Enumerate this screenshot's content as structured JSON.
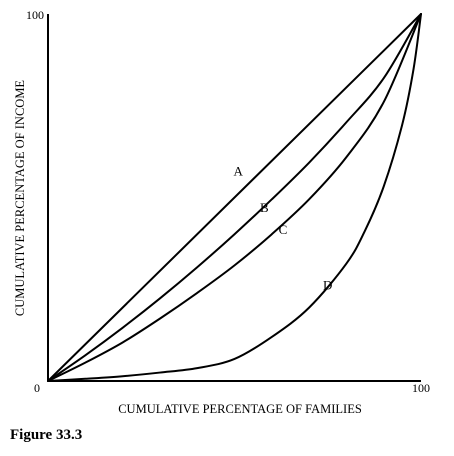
{
  "caption": "Figure 33.3",
  "chart_data": {
    "type": "line",
    "xlabel": "CUMULATIVE PERCENTAGE OF FAMILIES",
    "ylabel": "CUMULATIVE PERCENTAGE OF INCOME",
    "xlim": [
      0,
      100
    ],
    "ylim": [
      0,
      100
    ],
    "x_ticks": [
      "0",
      "100"
    ],
    "y_ticks": [
      "100"
    ],
    "grid": false,
    "series": [
      {
        "name": "A",
        "x": [
          0,
          100
        ],
        "y": [
          0,
          100
        ]
      },
      {
        "name": "B",
        "x": [
          0,
          10,
          20,
          30,
          40,
          50,
          60,
          70,
          80,
          90,
          100
        ],
        "y": [
          0,
          7,
          14.5,
          22.5,
          31,
          40,
          49.5,
          59.5,
          70.5,
          82.5,
          100
        ]
      },
      {
        "name": "C",
        "x": [
          0,
          10,
          20,
          30,
          40,
          50,
          60,
          70,
          80,
          90,
          100
        ],
        "y": [
          0,
          5,
          10.5,
          17,
          24,
          31.5,
          40,
          49.5,
          61,
          76,
          100
        ]
      },
      {
        "name": "D",
        "x": [
          0,
          10,
          20,
          30,
          40,
          50,
          60,
          70,
          80,
          85,
          90,
          95,
          98,
          100
        ],
        "y": [
          0,
          0.6,
          1.3,
          2.3,
          3.5,
          6,
          12,
          20,
          32,
          41,
          53,
          70,
          85,
          100
        ]
      }
    ],
    "curve_label_positions": {
      "A": [
        51,
        56
      ],
      "B": [
        58,
        46
      ],
      "C": [
        63,
        40
      ],
      "D": [
        75,
        25
      ]
    }
  }
}
